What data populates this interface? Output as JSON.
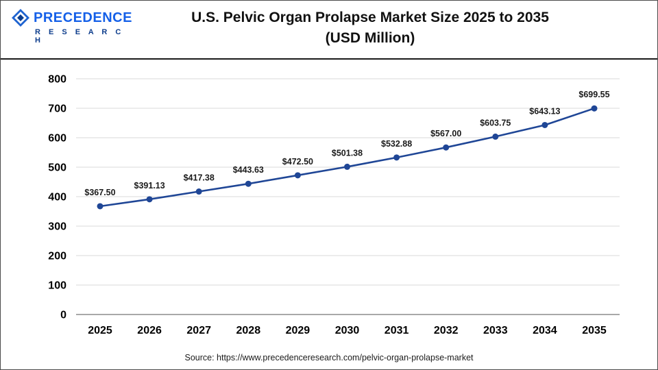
{
  "header": {
    "logo": {
      "line1": "PRECEDENCE",
      "line2": "R E S E A R C H"
    },
    "title_line1": "U.S. Pelvic Organ Prolapse Market Size 2025 to 2035",
    "title_line2": "(USD Million)"
  },
  "chart_data": {
    "type": "line",
    "title": "U.S. Pelvic Organ Prolapse Market Size 2025 to 2035 (USD Million)",
    "categories": [
      "2025",
      "2026",
      "2027",
      "2028",
      "2029",
      "2030",
      "2031",
      "2032",
      "2033",
      "2034",
      "2035"
    ],
    "values": [
      367.5,
      391.13,
      417.38,
      443.63,
      472.5,
      501.38,
      532.88,
      567.0,
      603.75,
      643.13,
      699.55
    ],
    "label_prefix": "$",
    "xlabel": "",
    "ylabel": "",
    "ylim": [
      0,
      800
    ],
    "yticks": [
      0,
      100,
      200,
      300,
      400,
      500,
      600,
      700,
      800
    ],
    "grid": "horizontal",
    "legend": "none",
    "line_color": "#1f4696",
    "marker_color": "#1f4696",
    "grid_color": "#d9d9d9",
    "axis_color": "#8c8c8c",
    "tick_label_color": "#000000",
    "data_label_color": "#1a1a1a"
  },
  "footer": {
    "source": "Source: https://www.precedenceresearch.com/pelvic-organ-prolapse-market"
  }
}
